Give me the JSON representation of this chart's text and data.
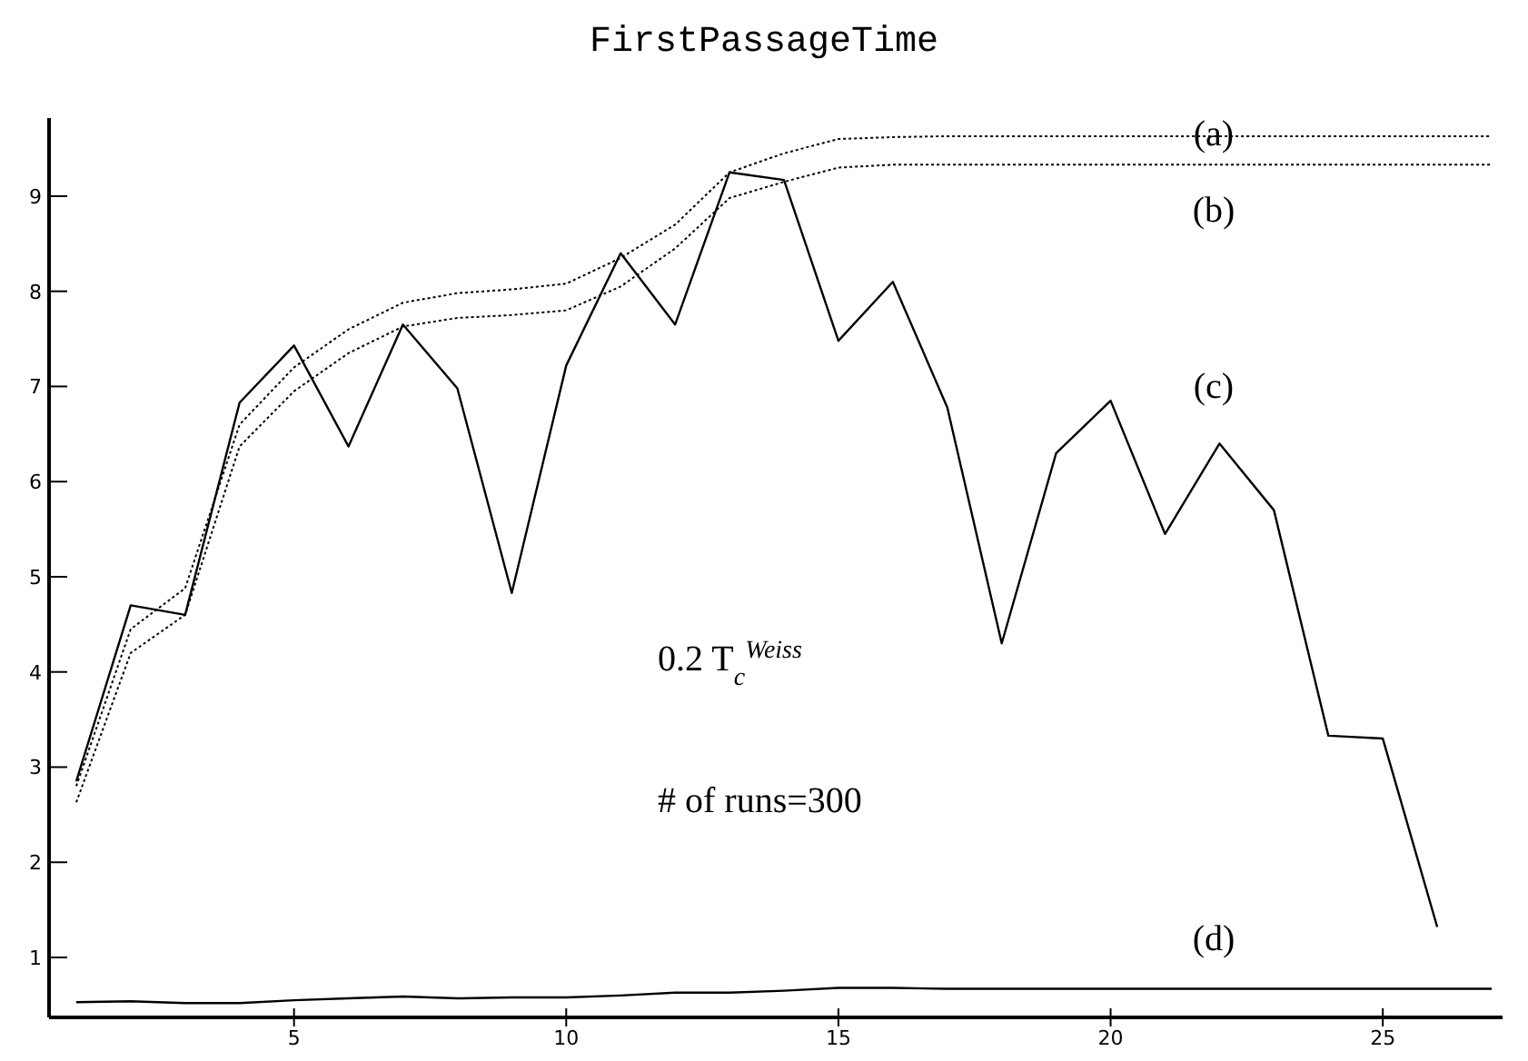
{
  "chart_data": {
    "type": "line",
    "title": "FirstPassageTime",
    "x": [
      1,
      2,
      3,
      4,
      5,
      6,
      7,
      8,
      9,
      10,
      11,
      12,
      13,
      14,
      15,
      16,
      17,
      18,
      19,
      20,
      21,
      22,
      23,
      24,
      25,
      26,
      27
    ],
    "series": [
      {
        "color": "#000000",
        "line_style": "dotted",
        "values": [
          2.8,
          4.45,
          4.88,
          6.6,
          7.2,
          7.6,
          7.88,
          7.98,
          8.02,
          8.08,
          8.35,
          8.7,
          9.25,
          9.45,
          9.6,
          9.62,
          9.63,
          9.63,
          9.63,
          9.63,
          9.63,
          9.63,
          9.63,
          9.63,
          9.63,
          9.63,
          9.63
        ]
      },
      {
        "color": "#000000",
        "line_style": "dotted",
        "values": [
          2.63,
          4.2,
          4.6,
          6.37,
          6.95,
          7.35,
          7.63,
          7.72,
          7.75,
          7.8,
          8.05,
          8.45,
          8.98,
          9.15,
          9.3,
          9.33,
          9.33,
          9.33,
          9.33,
          9.33,
          9.33,
          9.33,
          9.33,
          9.33,
          9.33,
          9.33,
          9.33
        ]
      },
      {
        "color": "#000000",
        "line_style": "solid",
        "values": [
          2.85,
          4.7,
          4.6,
          6.83,
          7.43,
          6.37,
          7.65,
          6.98,
          4.83,
          7.22,
          8.4,
          7.65,
          9.25,
          9.17,
          7.48,
          8.1,
          6.78,
          4.3,
          6.3,
          6.85,
          5.45,
          6.4,
          5.7,
          3.33,
          3.3,
          1.32,
          null
        ]
      },
      {
        "color": "#000000",
        "line_style": "solid",
        "values": [
          0.53,
          0.54,
          0.52,
          0.52,
          0.55,
          0.57,
          0.59,
          0.57,
          0.58,
          0.58,
          0.6,
          0.63,
          0.63,
          0.65,
          0.68,
          0.68,
          0.67,
          0.67,
          0.67,
          0.67,
          0.67,
          0.67,
          0.67,
          0.67,
          0.67,
          0.67,
          0.67
        ]
      }
    ],
    "xlim": [
      0.5,
      27.2
    ],
    "ylim": [
      0.37,
      9.82
    ],
    "xticks": [
      5,
      10,
      15,
      20,
      25
    ],
    "yticks": [
      1,
      2,
      3,
      4,
      5,
      6,
      7,
      8,
      9
    ],
    "grid": false,
    "marker": "none",
    "annotations": [
      "(a)",
      "(b)",
      "(c)",
      "(d)",
      "0.2 T$_{c}$$^{Weiss}$",
      "# of runs=300"
    ]
  }
}
